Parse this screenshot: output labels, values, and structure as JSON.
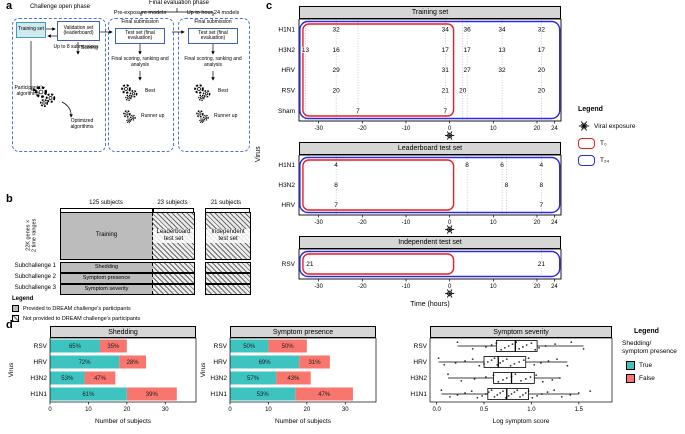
{
  "panel_labels": {
    "a": "a",
    "b": "b",
    "c": "c",
    "d": "d"
  },
  "colors": {
    "true_fill": "#3ec4c0",
    "false_fill": "#f8766d",
    "t0_stroke": "#eb1c24",
    "t24_stroke": "#2b2be6",
    "provided_gray": "#bcbcbc"
  },
  "panel_a": {
    "phase_open": "Challenge open phase",
    "phase_final": "Final evaluation phase",
    "sub_pre": "Pre-exposure models",
    "sub_24": "Up to hour 24 models",
    "training_set": "Training set",
    "validation_set": "Validation set (leaderboard)",
    "test_set": "Test set (final evaluation)",
    "up_to_8": "Up to 8 submissions",
    "scoring": "Scoring",
    "participants_alg": "Participants'\nalgorithms",
    "optimized_alg": "Optimized\nalgorithms",
    "final_submission": "Final submission",
    "final_scoring": "Final scoring, ranking and analysis",
    "best": "Best",
    "runner_up": "Runner up"
  },
  "panel_b": {
    "cols": [
      "125 subjects",
      "23 subjects",
      "21 subjects"
    ],
    "genes_label": "22K genes ×\n2 time ranges",
    "blocks": [
      "Training",
      "Leaderboard test set",
      "Independent test set"
    ],
    "subchallenges": [
      {
        "name": "Subchallenge 1",
        "task": "Shedding"
      },
      {
        "name": "Subchallenge 2",
        "task": "Symptom presence"
      },
      {
        "name": "Subchallenge 3",
        "task": "Symptom severity"
      }
    ],
    "legend": {
      "title": "Legend",
      "provided": "Provided to DREAM challenge's participants",
      "not_provided": "Not provided to DREAM challenge's participants"
    }
  },
  "panel_c": {
    "legend": {
      "title": "Legend",
      "exposure": "Viral exposure",
      "t0": "T₀",
      "t24": "T₂₄"
    }
  },
  "panel_d": {
    "legend": {
      "title": "Legend",
      "subtitle": "Shedding/\nsymptom presence",
      "true_label": "True",
      "false_label": "False"
    }
  },
  "chart_data": [
    {
      "type": "scatter",
      "title": "Training set",
      "xlabel": "Time (hours)",
      "ylabel": "Virus",
      "xlim": [
        -34.5,
        25.5
      ],
      "xticks": [
        -30,
        -20,
        -10,
        0,
        10,
        20,
        24
      ],
      "exposure_time": 0,
      "t0_window": [
        -33.6,
        0.9
      ],
      "t24_window": [
        -34.3,
        25.2
      ],
      "rows": [
        {
          "virus": "H1N1",
          "samples": [
            [
              -26,
              32
            ],
            [
              -1,
              34
            ],
            [
              4,
              36
            ],
            [
              12,
              34
            ],
            [
              21,
              32
            ]
          ]
        },
        {
          "virus": "H3N2",
          "samples": [
            [
              -33,
              13
            ],
            [
              -26,
              16
            ],
            [
              -1,
              17
            ],
            [
              4,
              17
            ],
            [
              12,
              13
            ],
            [
              21,
              17
            ]
          ]
        },
        {
          "virus": "HRV",
          "samples": [
            [
              -26,
              29
            ],
            [
              -1,
              31
            ],
            [
              4,
              27
            ],
            [
              12,
              32
            ],
            [
              21,
              20
            ]
          ]
        },
        {
          "virus": "RSV",
          "samples": [
            [
              -26,
              20
            ],
            [
              -1,
              21
            ],
            [
              3,
              20
            ],
            [
              21,
              20
            ]
          ]
        },
        {
          "virus": "Sham",
          "samples": [
            [
              -21,
              7
            ],
            [
              -1,
              7
            ]
          ]
        }
      ]
    },
    {
      "type": "scatter",
      "title": "Leaderboard test set",
      "xlabel": "Time (hours)",
      "ylabel": "Virus",
      "xlim": [
        -34.5,
        25.5
      ],
      "xticks": [
        -30,
        -20,
        -10,
        0,
        10,
        20,
        24
      ],
      "exposure_time": 0,
      "t0_window": [
        -33.6,
        0.9
      ],
      "t24_window": [
        -34.3,
        25.2
      ],
      "rows": [
        {
          "virus": "H1N1",
          "samples": [
            [
              -26,
              4
            ],
            [
              4,
              8
            ],
            [
              12,
              6
            ],
            [
              21,
              4
            ]
          ]
        },
        {
          "virus": "H3N2",
          "samples": [
            [
              -26,
              8
            ],
            [
              13,
              8
            ],
            [
              21,
              8
            ]
          ]
        },
        {
          "virus": "HRV",
          "samples": [
            [
              -26,
              7
            ],
            [
              21,
              7
            ]
          ]
        }
      ]
    },
    {
      "type": "scatter",
      "title": "Independent test set",
      "xlabel": "Time (hours)",
      "ylabel": "Virus",
      "xlim": [
        -34.5,
        25.5
      ],
      "xticks": [
        -30,
        -20,
        -10,
        0,
        10,
        20,
        24
      ],
      "exposure_time": 0,
      "t0_window": [
        -33.6,
        0.9
      ],
      "t24_window": [
        -34.3,
        25.2
      ],
      "rows": [
        {
          "virus": "RSV",
          "samples": [
            [
              -32,
              21
            ],
            [
              21,
              21
            ]
          ]
        }
      ]
    },
    {
      "type": "bar",
      "title": "Shedding",
      "xlabel": "Number of subjects",
      "ylabel": "Virus",
      "categories": [
        "RSV",
        "HRV",
        "H3N2",
        "H1N1"
      ],
      "xticks": [
        0,
        10,
        20,
        30
      ],
      "xlim": [
        0,
        38
      ],
      "series": [
        {
          "name": "True",
          "values": [
            13,
            18,
            9,
            20
          ],
          "pct_labels": [
            "65%",
            "72%",
            "53%",
            "61%"
          ]
        },
        {
          "name": "False",
          "values": [
            7,
            7,
            8,
            13
          ],
          "pct_labels": [
            "35%",
            "28%",
            "47%",
            "39%"
          ]
        }
      ]
    },
    {
      "type": "bar",
      "title": "Symptom presence",
      "xlabel": "Number of subjects",
      "ylabel": "Virus",
      "categories": [
        "RSV",
        "HRV",
        "H3N2",
        "H1N1"
      ],
      "xticks": [
        0,
        10,
        20,
        30
      ],
      "xlim": [
        0,
        38
      ],
      "series": [
        {
          "name": "True",
          "values": [
            10,
            18,
            12,
            17
          ],
          "pct_labels": [
            "50%",
            "69%",
            "57%",
            "53%"
          ]
        },
        {
          "name": "False",
          "values": [
            10,
            8,
            9,
            15
          ],
          "pct_labels": [
            "50%",
            "31%",
            "43%",
            "47%"
          ]
        }
      ]
    },
    {
      "type": "box",
      "title": "Symptom severity",
      "xlabel": "Log symptom score",
      "ylabel": "Virus",
      "xticks": [
        0,
        0.5,
        1,
        1.5
      ],
      "xtick_labels": [
        "0.0",
        "0.5",
        "1.0",
        "1.5"
      ],
      "xlim": [
        -0.07,
        1.85
      ],
      "rows": [
        {
          "virus": "RSV",
          "whisker_min": 0.22,
          "q1": 0.63,
          "median": 0.83,
          "q3": 1.06,
          "whisker_max": 1.55,
          "values": [
            0.22,
            0.38,
            0.52,
            0.58,
            0.63,
            0.68,
            0.72,
            0.76,
            0.8,
            0.84,
            0.87,
            0.91,
            0.95,
            1.0,
            1.04,
            1.08,
            1.15,
            1.25,
            1.42,
            1.55
          ]
        },
        {
          "virus": "HRV",
          "whisker_min": 0.02,
          "q1": 0.5,
          "median": 0.65,
          "q3": 0.94,
          "whisker_max": 1.38,
          "values": [
            0.02,
            0.08,
            0.2,
            0.3,
            0.38,
            0.45,
            0.5,
            0.54,
            0.58,
            0.61,
            0.64,
            0.67,
            0.7,
            0.74,
            0.78,
            0.82,
            0.87,
            0.92,
            0.97,
            1.03,
            1.1,
            1.18,
            1.27,
            1.38
          ]
        },
        {
          "virus": "H3N2",
          "whisker_min": 0.12,
          "q1": 0.6,
          "median": 0.79,
          "q3": 1.03,
          "whisker_max": 1.3,
          "values": [
            0.12,
            0.26,
            0.4,
            0.52,
            0.6,
            0.65,
            0.7,
            0.74,
            0.79,
            0.83,
            0.89,
            0.94,
            0.99,
            1.05,
            1.12,
            1.22,
            1.3
          ]
        },
        {
          "virus": "H1N1",
          "whisker_min": 0.05,
          "q1": 0.54,
          "median": 0.74,
          "q3": 0.97,
          "whisker_max": 1.5,
          "values": [
            0.05,
            0.14,
            0.22,
            0.3,
            0.37,
            0.43,
            0.48,
            0.52,
            0.55,
            0.58,
            0.61,
            0.64,
            0.67,
            0.7,
            0.73,
            0.76,
            0.79,
            0.82,
            0.85,
            0.88,
            0.91,
            0.94,
            0.97,
            1.01,
            1.06,
            1.11,
            1.17,
            1.24,
            1.32,
            1.41,
            1.5,
            1.62
          ]
        }
      ]
    }
  ]
}
